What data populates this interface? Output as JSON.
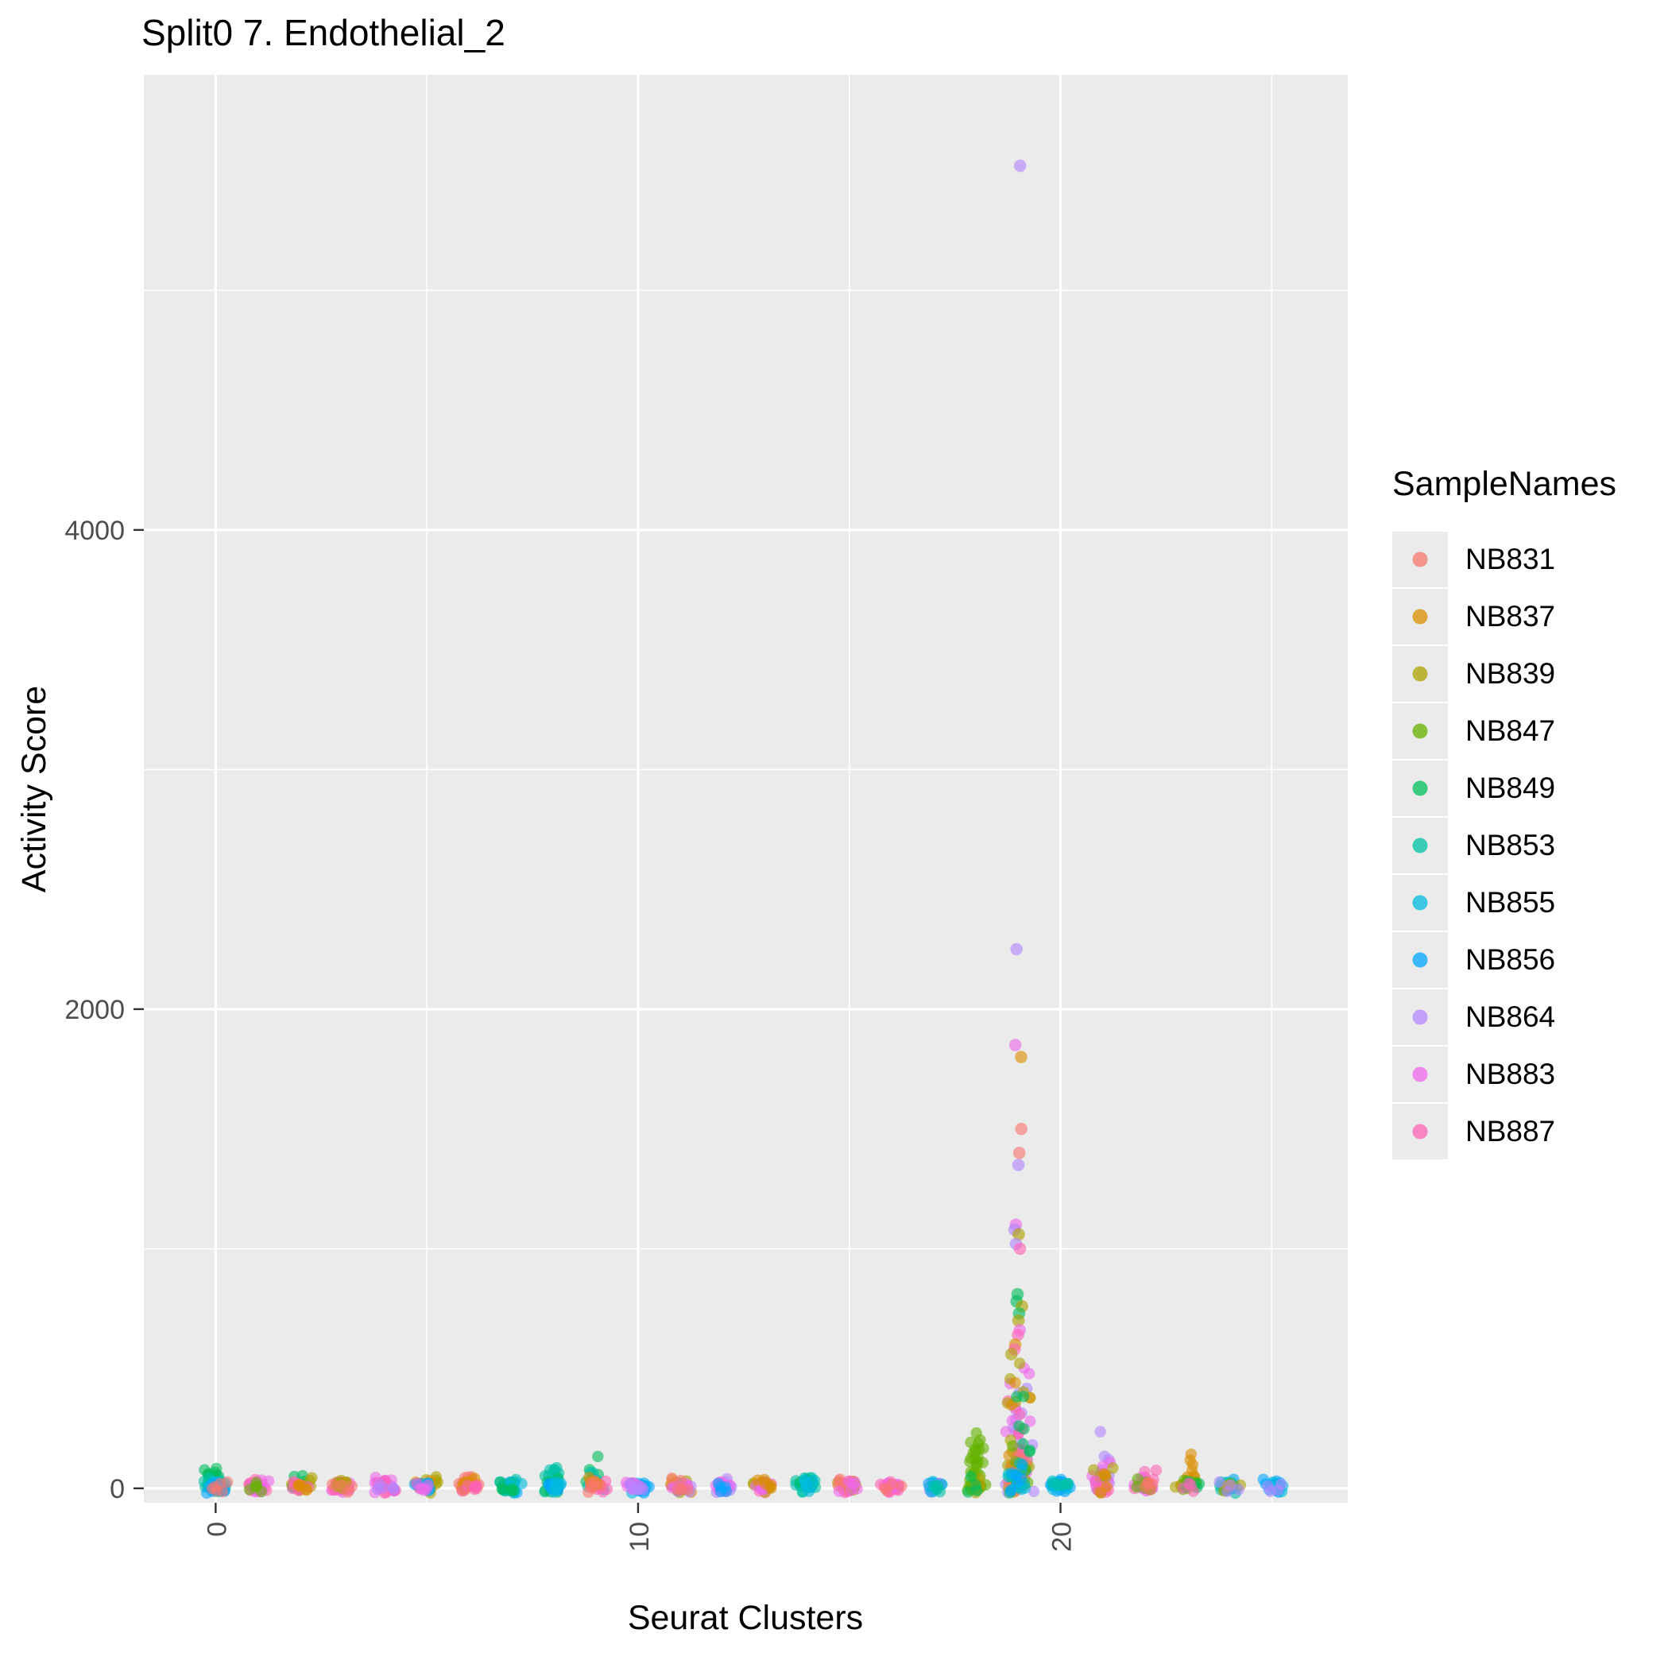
{
  "title": "Split0 7. Endothelial_2",
  "colors": {
    "panel_bg": "#EBEBEB",
    "grid": "#FFFFFF",
    "tick_mark": "#333333",
    "tick_label": "#4D4D4D",
    "axis_text": "#000000",
    "legend_key_bg": "#EBEBEB"
  },
  "chart_data": {
    "type": "scatter",
    "subtype": "jitter-strip",
    "title": "Split0 7. Endothelial_2",
    "xlabel": "Seurat Clusters",
    "ylabel": "Activity Score",
    "legend_title": "SampleNames",
    "legend_position": "right",
    "grid": true,
    "x_ticks": [
      0,
      10,
      20
    ],
    "x_minor_ticks": [
      5,
      15,
      25
    ],
    "y_ticks": [
      0,
      2000,
      4000
    ],
    "y_minor_ticks": [
      1000,
      3000,
      5000
    ],
    "xlim": [
      -1.7,
      26.8
    ],
    "ylim": [
      -60,
      5900
    ],
    "clusters": [
      0,
      1,
      2,
      3,
      4,
      5,
      6,
      7,
      8,
      9,
      10,
      11,
      12,
      13,
      14,
      15,
      16,
      17,
      18,
      19,
      20,
      21,
      22,
      23,
      24,
      25
    ],
    "samples": [
      {
        "name": "NB831",
        "color": "#F8766D"
      },
      {
        "name": "NB837",
        "color": "#DB8E00"
      },
      {
        "name": "NB839",
        "color": "#AEA200"
      },
      {
        "name": "NB847",
        "color": "#64B200"
      },
      {
        "name": "NB849",
        "color": "#00BD5C"
      },
      {
        "name": "NB853",
        "color": "#00C1A7"
      },
      {
        "name": "NB855",
        "color": "#00BADE"
      },
      {
        "name": "NB856",
        "color": "#00A6FF"
      },
      {
        "name": "NB864",
        "color": "#B385FF"
      },
      {
        "name": "NB883",
        "color": "#EF67EB"
      },
      {
        "name": "NB887",
        "color": "#FF63B6"
      }
    ],
    "baseline_groups_format": [
      "cluster",
      "sample",
      "n_points",
      "value_min",
      "value_max"
    ],
    "baseline_groups": [
      [
        0,
        "NB849",
        18,
        5,
        90
      ],
      [
        0,
        "NB853",
        12,
        0,
        50
      ],
      [
        0,
        "NB855",
        10,
        0,
        20
      ],
      [
        0,
        "NB856",
        12,
        0,
        15
      ],
      [
        0,
        "NB831",
        6,
        0,
        30
      ],
      [
        1,
        "NB887",
        15,
        0,
        30
      ],
      [
        1,
        "NB883",
        12,
        0,
        25
      ],
      [
        1,
        "NB847",
        5,
        0,
        20
      ],
      [
        2,
        "NB849",
        10,
        0,
        45
      ],
      [
        2,
        "NB839",
        8,
        0,
        35
      ],
      [
        2,
        "NB887",
        10,
        0,
        25
      ],
      [
        2,
        "NB837",
        5,
        0,
        30
      ],
      [
        3,
        "NB883",
        14,
        0,
        30
      ],
      [
        3,
        "NB887",
        10,
        0,
        25
      ],
      [
        3,
        "NB839",
        8,
        0,
        40
      ],
      [
        3,
        "NB831",
        4,
        0,
        20
      ],
      [
        4,
        "NB883",
        16,
        0,
        30
      ],
      [
        4,
        "NB887",
        8,
        0,
        20
      ],
      [
        4,
        "NB864",
        5,
        0,
        15
      ],
      [
        5,
        "NB839",
        10,
        0,
        60
      ],
      [
        5,
        "NB837",
        8,
        0,
        50
      ],
      [
        5,
        "NB856",
        8,
        0,
        15
      ],
      [
        5,
        "NB883",
        6,
        0,
        20
      ],
      [
        6,
        "NB831",
        16,
        5,
        60
      ],
      [
        6,
        "NB837",
        8,
        0,
        40
      ],
      [
        6,
        "NB887",
        6,
        0,
        20
      ],
      [
        7,
        "NB856",
        14,
        0,
        25
      ],
      [
        7,
        "NB853",
        10,
        0,
        35
      ],
      [
        7,
        "NB855",
        8,
        0,
        20
      ],
      [
        7,
        "NB849",
        6,
        0,
        30
      ],
      [
        8,
        "NB853",
        14,
        5,
        95
      ],
      [
        8,
        "NB849",
        10,
        0,
        60
      ],
      [
        8,
        "NB856",
        10,
        0,
        20
      ],
      [
        8,
        "NB855",
        6,
        0,
        15
      ],
      [
        9,
        "NB849",
        8,
        20,
        130
      ],
      [
        9,
        "NB853",
        10,
        0,
        60
      ],
      [
        9,
        "NB887",
        8,
        0,
        25
      ],
      [
        9,
        "NB837",
        6,
        0,
        40
      ],
      [
        9,
        "NB831",
        5,
        0,
        30
      ],
      [
        10,
        "NB855",
        12,
        0,
        25
      ],
      [
        10,
        "NB856",
        10,
        0,
        20
      ],
      [
        10,
        "NB883",
        8,
        0,
        20
      ],
      [
        10,
        "NB864",
        6,
        0,
        15
      ],
      [
        11,
        "NB839",
        10,
        0,
        35
      ],
      [
        11,
        "NB837",
        8,
        0,
        30
      ],
      [
        11,
        "NB864",
        8,
        0,
        20
      ],
      [
        11,
        "NB883",
        6,
        0,
        15
      ],
      [
        11,
        "NB831",
        5,
        0,
        25
      ],
      [
        12,
        "NB864",
        14,
        0,
        25
      ],
      [
        12,
        "NB883",
        10,
        0,
        20
      ],
      [
        12,
        "NB856",
        5,
        0,
        15
      ],
      [
        13,
        "NB887",
        10,
        0,
        30
      ],
      [
        13,
        "NB839",
        8,
        0,
        25
      ],
      [
        13,
        "NB883",
        6,
        0,
        20
      ],
      [
        13,
        "NB837",
        5,
        0,
        35
      ],
      [
        14,
        "NB853",
        20,
        0,
        60
      ],
      [
        14,
        "NB849",
        8,
        0,
        40
      ],
      [
        14,
        "NB855",
        8,
        0,
        25
      ],
      [
        15,
        "NB887",
        10,
        0,
        30
      ],
      [
        15,
        "NB839",
        8,
        0,
        25
      ],
      [
        15,
        "NB831",
        8,
        0,
        35
      ],
      [
        15,
        "NB883",
        6,
        0,
        20
      ],
      [
        16,
        "NB887",
        14,
        0,
        30
      ],
      [
        16,
        "NB883",
        8,
        0,
        20
      ],
      [
        16,
        "NB831",
        4,
        0,
        15
      ],
      [
        17,
        "NB856",
        10,
        0,
        20
      ],
      [
        17,
        "NB864",
        8,
        0,
        15
      ],
      [
        17,
        "NB855",
        6,
        0,
        15
      ],
      [
        17,
        "NB853",
        4,
        0,
        10
      ],
      [
        18,
        "NB847",
        42,
        0,
        230
      ],
      [
        18,
        "NB839",
        6,
        0,
        60
      ],
      [
        18,
        "NB849",
        4,
        0,
        40
      ],
      [
        19,
        "NB864",
        25,
        0,
        460
      ],
      [
        19,
        "NB883",
        20,
        0,
        500
      ],
      [
        19,
        "NB887",
        15,
        0,
        420
      ],
      [
        19,
        "NB839",
        15,
        0,
        540
      ],
      [
        19,
        "NB837",
        12,
        0,
        460
      ],
      [
        19,
        "NB831",
        10,
        0,
        300
      ],
      [
        19,
        "NB849",
        10,
        0,
        500
      ],
      [
        19,
        "NB847",
        8,
        0,
        200
      ],
      [
        19,
        "NB853",
        6,
        0,
        150
      ],
      [
        19,
        "NB855",
        6,
        0,
        150
      ],
      [
        19,
        "NB856",
        6,
        0,
        150
      ],
      [
        20,
        "NB856",
        14,
        0,
        30
      ],
      [
        20,
        "NB855",
        10,
        0,
        25
      ],
      [
        20,
        "NB853",
        5,
        0,
        15
      ],
      [
        21,
        "NB864",
        12,
        0,
        230
      ],
      [
        21,
        "NB883",
        10,
        0,
        130
      ],
      [
        21,
        "NB839",
        6,
        0,
        90
      ],
      [
        21,
        "NB887",
        5,
        0,
        50
      ],
      [
        21,
        "NB837",
        4,
        0,
        60
      ],
      [
        22,
        "NB887",
        10,
        0,
        60
      ],
      [
        22,
        "NB883",
        8,
        0,
        40
      ],
      [
        22,
        "NB847",
        6,
        0,
        50
      ],
      [
        22,
        "NB831",
        5,
        0,
        30
      ],
      [
        23,
        "NB837",
        10,
        10,
        170
      ],
      [
        23,
        "NB839",
        8,
        0,
        110
      ],
      [
        23,
        "NB847",
        6,
        0,
        60
      ],
      [
        23,
        "NB849",
        4,
        0,
        40
      ],
      [
        23,
        "NB887",
        4,
        0,
        30
      ],
      [
        24,
        "NB856",
        10,
        0,
        30
      ],
      [
        24,
        "NB853",
        8,
        0,
        25
      ],
      [
        24,
        "NB839",
        6,
        0,
        40
      ],
      [
        24,
        "NB864",
        4,
        0,
        20
      ],
      [
        25,
        "NB856",
        10,
        0,
        20
      ],
      [
        25,
        "NB855",
        6,
        0,
        15
      ],
      [
        25,
        "NB864",
        4,
        0,
        10
      ]
    ],
    "outliers_format": [
      "cluster",
      "sample",
      "value"
    ],
    "outliers": [
      [
        19,
        "NB864",
        5520
      ],
      [
        19,
        "NB864",
        2250
      ],
      [
        19,
        "NB883",
        1850
      ],
      [
        19,
        "NB837",
        1800
      ],
      [
        19,
        "NB831",
        1500
      ],
      [
        19,
        "NB831",
        1400
      ],
      [
        19,
        "NB864",
        1350
      ],
      [
        19,
        "NB883",
        1100
      ],
      [
        19,
        "NB864",
        1080
      ],
      [
        19,
        "NB839",
        1060
      ],
      [
        19,
        "NB864",
        1020
      ],
      [
        19,
        "NB887",
        1000
      ],
      [
        19,
        "NB849",
        810
      ],
      [
        19,
        "NB849",
        780
      ],
      [
        19,
        "NB839",
        760
      ],
      [
        19,
        "NB849",
        730
      ],
      [
        19,
        "NB839",
        700
      ],
      [
        19,
        "NB883",
        660
      ],
      [
        19,
        "NB887",
        640
      ],
      [
        19,
        "NB837",
        600
      ],
      [
        19,
        "NB887",
        580
      ],
      [
        19,
        "NB839",
        560
      ]
    ]
  }
}
